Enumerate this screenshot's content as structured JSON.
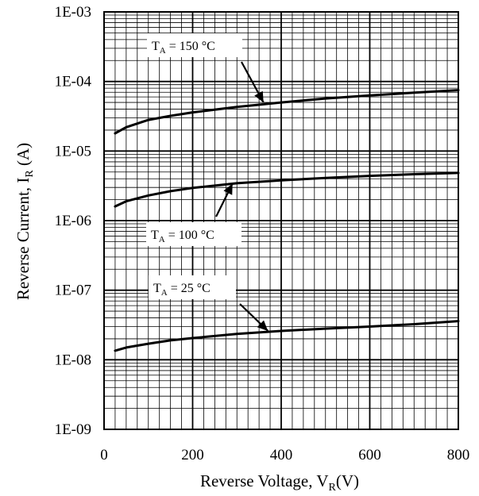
{
  "chart_data": {
    "type": "line",
    "xlabel": {
      "main": "Reverse Voltage, V",
      "sub": "R",
      "unit": "(V)"
    },
    "ylabel": {
      "main": "Reverse Current, I",
      "sub": "R",
      "unit": " (A)"
    },
    "xlim": [
      0,
      800
    ],
    "ylim": [
      1e-09,
      0.001
    ],
    "y_scale": "log",
    "grid": true,
    "x_ticks": [
      0,
      200,
      400,
      600,
      800
    ],
    "x_tick_labels": [
      "0",
      "200",
      "400",
      "600",
      "800"
    ],
    "y_ticks": [
      1e-09,
      1e-08,
      1e-07,
      1e-06,
      1e-05,
      0.0001,
      0.001
    ],
    "y_tick_labels": [
      "1E-09",
      "1E-08",
      "1E-07",
      "1E-06",
      "1E-05",
      "1E-04",
      "1E-03"
    ],
    "series": [
      {
        "x": [
          25,
          50,
          100,
          150,
          200,
          300,
          400,
          500,
          600,
          700,
          800
        ],
        "y": [
          1.8e-05,
          2.2e-05,
          2.8e-05,
          3.2e-05,
          3.6e-05,
          4.3e-05,
          5e-05,
          5.7e-05,
          6.3e-05,
          6.9e-05,
          7.5e-05
        ]
      },
      {
        "x": [
          25,
          50,
          100,
          150,
          200,
          300,
          400,
          500,
          600,
          700,
          800
        ],
        "y": [
          1.6e-06,
          1.9e-06,
          2.3e-06,
          2.65e-06,
          2.95e-06,
          3.45e-06,
          3.8e-06,
          4.1e-06,
          4.4e-06,
          4.65e-06,
          4.85e-06
        ]
      },
      {
        "x": [
          25,
          50,
          100,
          150,
          200,
          300,
          400,
          500,
          600,
          700,
          800
        ],
        "y": [
          1.35e-08,
          1.5e-08,
          1.7e-08,
          1.9e-08,
          2.05e-08,
          2.35e-08,
          2.6e-08,
          2.8e-08,
          3e-08,
          3.25e-08,
          3.6e-08
        ]
      }
    ],
    "annotations": [
      {
        "label": "T",
        "sub": "A",
        "text": " = 150  °C",
        "points_to": [
          360,
          5e-05
        ]
      },
      {
        "label": "T",
        "sub": "A",
        "text": " = 100  °C",
        "points_to": [
          290,
          3.4e-06
        ]
      },
      {
        "label": "T",
        "sub": "A",
        "text": " = 25  °C",
        "points_to": [
          370,
          2.6e-08
        ]
      }
    ]
  }
}
